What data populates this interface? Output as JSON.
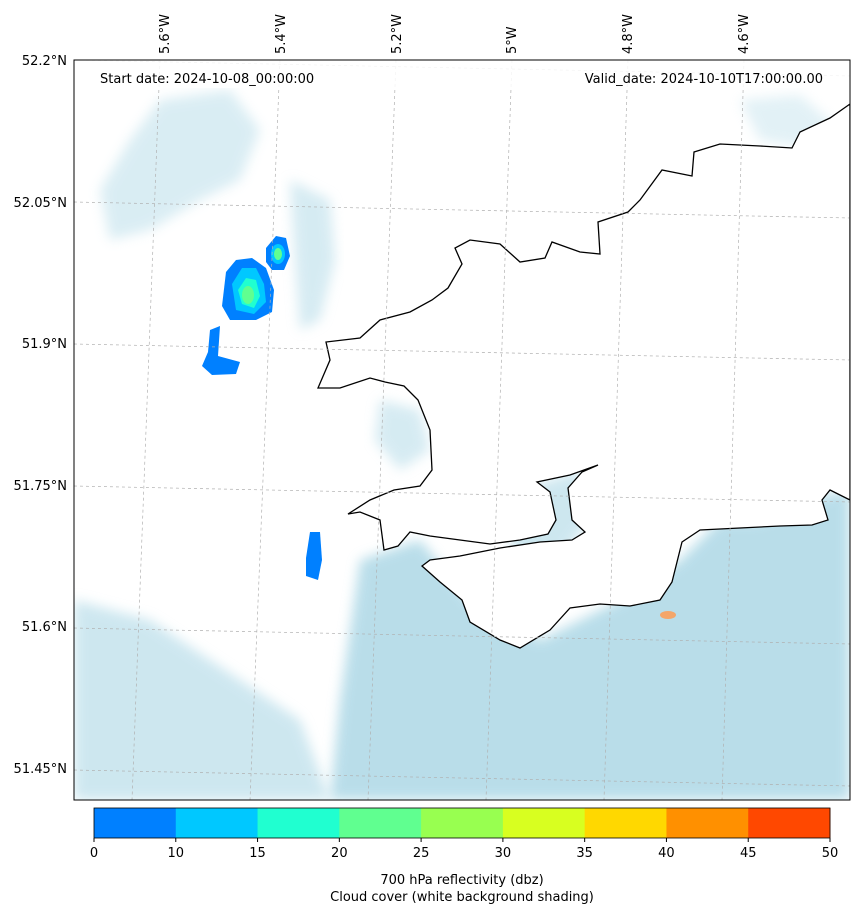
{
  "header": {
    "start_date": "Start date: 2024-10-08_00:00:00",
    "valid_date": "Valid_date: 2024-10-10T17:00:00.00"
  },
  "axes": {
    "lon_labels": [
      "5.6°W",
      "5.4°W",
      "5.2°W",
      "5°W",
      "4.8°W",
      "4.6°W"
    ],
    "lat_labels": [
      "52.2°N",
      "52.05°N",
      "51.9°N",
      "51.75°N",
      "51.6°N",
      "51.45°N"
    ]
  },
  "colorbar": {
    "ticks": [
      "0",
      "10",
      "15",
      "20",
      "25",
      "30",
      "35",
      "40",
      "45",
      "50"
    ],
    "colors": [
      "#0080ff",
      "#00c8ff",
      "#20ffd0",
      "#60ff90",
      "#98ff50",
      "#d8ff20",
      "#ffd800",
      "#ff9000",
      "#ff4800"
    ],
    "label_line1": "700 hPa reflectivity (dbz)",
    "label_line2": "Cloud cover (white background shading)"
  },
  "colors": {
    "land": "#f4a66a",
    "cloud": "#add8e6",
    "coast": "#000000"
  }
}
